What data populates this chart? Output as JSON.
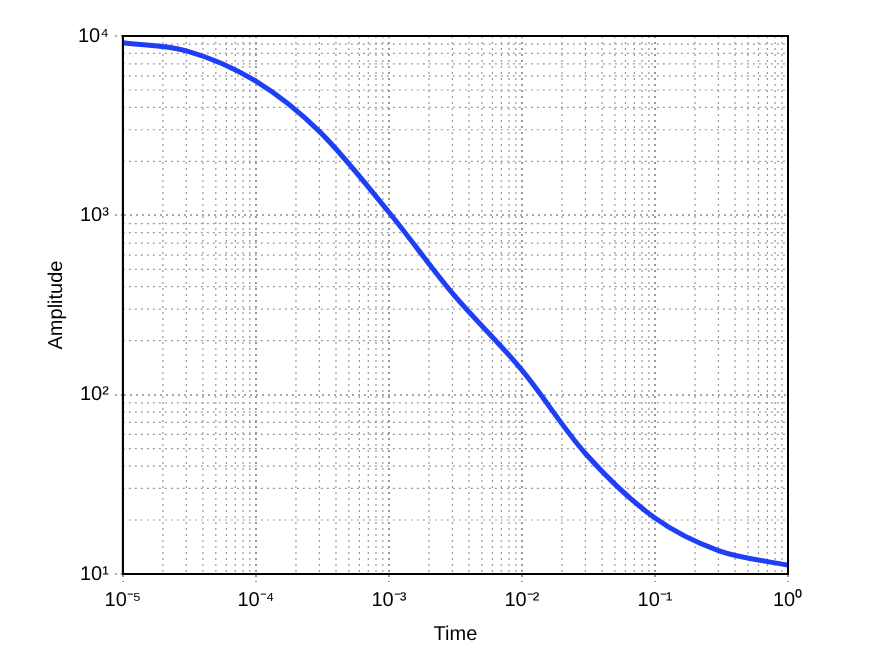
{
  "chart_data": {
    "type": "line",
    "xlabel": "Time",
    "ylabel": "Amplitude",
    "log": "xy",
    "grid": true,
    "marker": "none",
    "line_style": "solid",
    "x": [
      1e-05,
      3e-05,
      0.0001,
      0.0003,
      0.001,
      0.003,
      0.01,
      0.03,
      0.1,
      0.3,
      1
    ],
    "series": [
      {
        "color": "#1f3ff5",
        "values": [
          9170,
          8270,
          5600,
          2940,
          1040,
          368,
          137,
          47,
          20.5,
          13.5,
          11.2
        ]
      }
    ],
    "xlim": [
      1e-05,
      1
    ],
    "ylim": [
      10,
      10000
    ],
    "xticks": [
      {
        "value": 1e-05,
        "label": "10⁻⁵"
      },
      {
        "value": 0.0001,
        "label": "10⁻⁴"
      },
      {
        "value": 0.001,
        "label": "10⁻³"
      },
      {
        "value": 0.01,
        "label": "10⁻²"
      },
      {
        "value": 0.1,
        "label": "10⁻¹"
      },
      {
        "value": 1,
        "label": "10⁰"
      }
    ],
    "yticks": [
      {
        "value": 10,
        "label": "10¹"
      },
      {
        "value": 100,
        "label": "10²"
      },
      {
        "value": 1000,
        "label": "10³"
      },
      {
        "value": 10000,
        "label": "10⁴"
      }
    ]
  }
}
